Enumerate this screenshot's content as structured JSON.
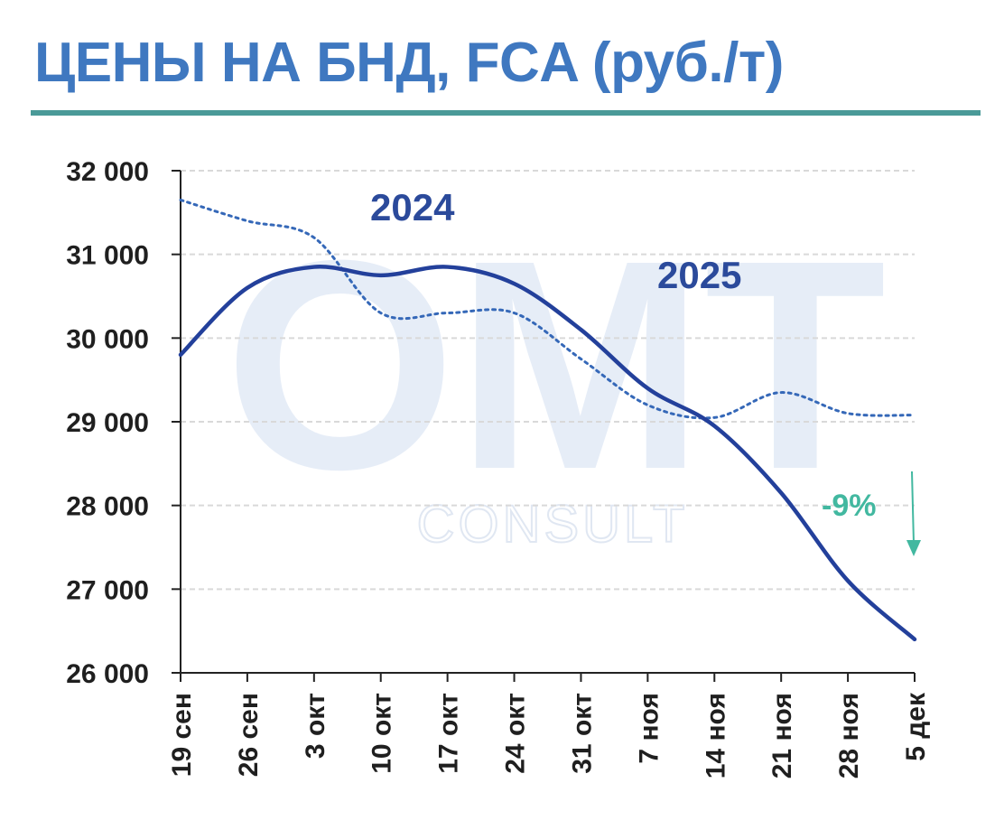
{
  "title": "ЦЕНЫ НА БНД, FCA (руб./т)",
  "watermark": {
    "main": "OMT",
    "sub": "CONSULT"
  },
  "colors": {
    "title": "#3f78c0",
    "title_rule": "#4a9a98",
    "series_2025": "#23409b",
    "series_2024": "#3568b8",
    "change": "#42b8a0",
    "grid": "#d9d9d9"
  },
  "chart_data": {
    "type": "line",
    "title": "ЦЕНЫ НА БНД, FCA (руб./т)",
    "xlabel": "",
    "ylabel": "",
    "categories": [
      "19 сен",
      "26 сен",
      "3 окт",
      "10 окт",
      "17 окт",
      "24 окт",
      "31 окт",
      "7 ноя",
      "14 ноя",
      "21 ноя",
      "28 ноя",
      "5 дек"
    ],
    "ylim": [
      26000,
      32000
    ],
    "y_ticks": [
      26000,
      27000,
      28000,
      29000,
      30000,
      31000,
      32000
    ],
    "y_tick_labels": [
      "26 000",
      "27 000",
      "28 000",
      "29 000",
      "30 000",
      "31 000",
      "32 000"
    ],
    "grid": true,
    "legend": "inline labels",
    "series": [
      {
        "name": "2024",
        "style": "dotted",
        "values": [
          31650,
          31400,
          31200,
          30300,
          30300,
          30300,
          29750,
          29200,
          29050,
          29350,
          29100,
          29080
        ]
      },
      {
        "name": "2025",
        "style": "solid",
        "values": [
          29800,
          30600,
          30850,
          30750,
          30850,
          30650,
          30100,
          29400,
          28950,
          28150,
          27100,
          26400
        ]
      }
    ],
    "annotations": [
      {
        "text": "-9%",
        "arrow": "down"
      }
    ]
  }
}
